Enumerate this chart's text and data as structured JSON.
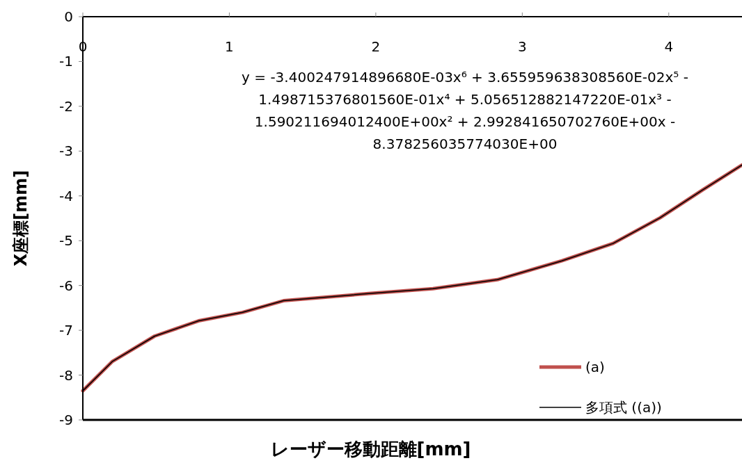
{
  "chart_data": {
    "type": "line",
    "xlabel": "レーザー移動距離[mm]",
    "ylabel": "X座標[mm]",
    "annotations": [
      "y = -3.400247914896680E-03x⁶ + 3.655959638308560E-02x⁵ - 1.498715376801560E-01x⁴ + 5.056512882147220E-01x³ - 1.590211694012400E+00x² + 2.992841650702760E+00x - 8.378256035774030E+00"
    ],
    "x": [
      0,
      0.2,
      0.49,
      0.79,
      1.09,
      1.37,
      1.95,
      2.39,
      2.83,
      3.27,
      3.62,
      3.94,
      4.23,
      4.5
    ],
    "series": [
      {
        "name": "(a)",
        "color": "#c0504d",
        "values": [
          -8.35,
          -7.7,
          -7.13,
          -6.79,
          -6.6,
          -6.34,
          -6.18,
          -6.07,
          -5.87,
          -5.45,
          -5.06,
          -4.49,
          -3.87,
          -3.31
        ]
      },
      {
        "name": "多項式 ((a))",
        "color": "#000000",
        "values": [
          -8.35,
          -7.7,
          -7.13,
          -6.79,
          -6.6,
          -6.34,
          -6.18,
          -6.07,
          -5.87,
          -5.45,
          -5.06,
          -4.49,
          -3.87,
          -3.31
        ]
      }
    ],
    "xlim": [
      0,
      4.5
    ],
    "ylim": [
      -9,
      0
    ],
    "xticks": [
      0,
      1,
      2,
      3,
      4
    ],
    "yticks": [
      0,
      -1,
      -2,
      -3,
      -4,
      -5,
      -6,
      -7,
      -8,
      -9
    ],
    "legend": "bottom right",
    "grid": false,
    "marker": "none",
    "line_style": "solid"
  }
}
